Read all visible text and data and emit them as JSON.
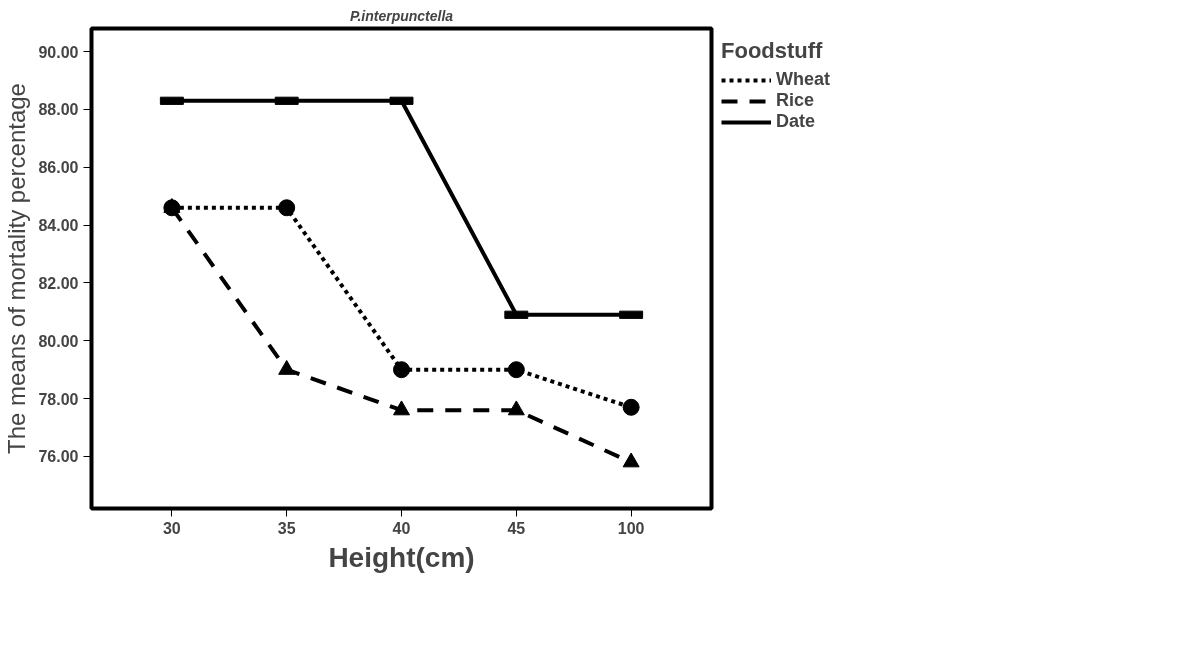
{
  "chart_data": {
    "type": "line",
    "title": "P.interpunctella",
    "xlabel": "Height(cm)",
    "ylabel": "The means of mortality percentage",
    "legend_title": "Foodstuff",
    "categories": [
      "30",
      "35",
      "40",
      "45",
      "100"
    ],
    "series": [
      {
        "name": "Wheat",
        "color": "#000000",
        "marker": "circle",
        "line_style": "dotted",
        "values": [
          84.6,
          84.6,
          79.0,
          79.0,
          77.7
        ]
      },
      {
        "name": "Rice",
        "color": "#000000",
        "marker": "triangle",
        "line_style": "dashed",
        "values": [
          84.6,
          79.0,
          77.6,
          77.6,
          75.8
        ]
      },
      {
        "name": "Date",
        "color": "#000000",
        "marker": "square",
        "line_style": "solid",
        "values": [
          88.3,
          88.3,
          88.3,
          80.9,
          80.9
        ]
      }
    ],
    "ylim": [
      74.2,
      90.8
    ],
    "yticks": [
      {
        "value": 76,
        "label": "76.00"
      },
      {
        "value": 78,
        "label": "78.00"
      },
      {
        "value": 80,
        "label": "80.00"
      },
      {
        "value": 82,
        "label": "82.00"
      },
      {
        "value": 84,
        "label": "84.00"
      },
      {
        "value": 86,
        "label": "86.00"
      },
      {
        "value": 88,
        "label": "88.00"
      },
      {
        "value": 90,
        "label": "90.00"
      }
    ],
    "grid": false,
    "legend": "top right"
  }
}
